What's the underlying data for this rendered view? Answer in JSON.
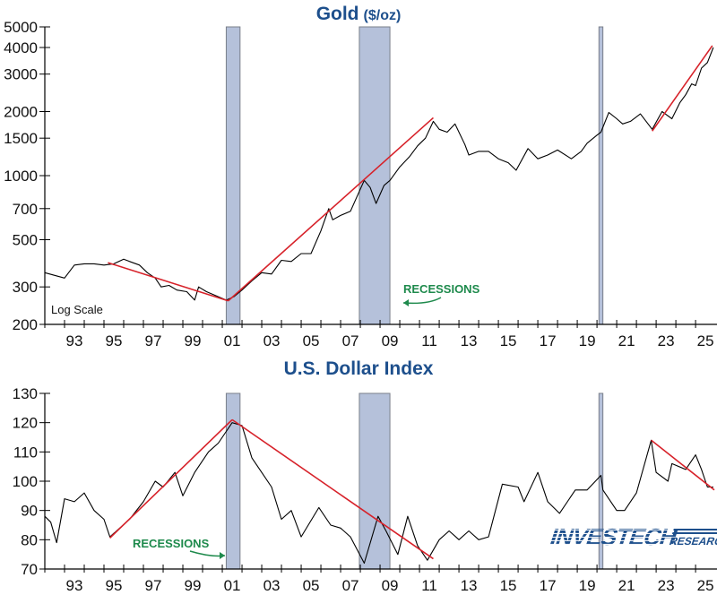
{
  "chart_data": [
    {
      "type": "line",
      "title": "Gold",
      "title_unit": "($/oz)",
      "y_scale": "log",
      "ylim": [
        200,
        5000
      ],
      "xlim": [
        1992,
        2026
      ],
      "y_ticks": [
        200,
        300,
        500,
        700,
        1000,
        1500,
        2000,
        3000,
        4000,
        5000
      ],
      "x_tick_labels": [
        "93",
        "95",
        "97",
        "99",
        "01",
        "03",
        "05",
        "07",
        "09",
        "11",
        "13",
        "15",
        "17",
        "19",
        "21",
        "23",
        "25"
      ],
      "annotation": "Log Scale",
      "recession_label": "RECESSIONS",
      "grid": false,
      "line_color": "#000000",
      "trend_color": "#d7222a",
      "recession_color": "#b5c1da",
      "recessions": [
        [
          2001.2,
          2001.9
        ],
        [
          2007.95,
          2009.5
        ],
        [
          2020.1,
          2020.3
        ]
      ],
      "series": {
        "x": [
          1992.0,
          1992.5,
          1993.0,
          1993.5,
          1994.0,
          1994.5,
          1995.0,
          1995.5,
          1996.0,
          1996.3,
          1996.8,
          1997.2,
          1997.6,
          1997.9,
          1998.3,
          1998.7,
          1999.2,
          1999.6,
          1999.8,
          2000.2,
          2000.6,
          2001.2,
          2001.6,
          2002.0,
          2002.5,
          2003.0,
          2003.5,
          2004.0,
          2004.5,
          2005.0,
          2005.5,
          2006.0,
          2006.4,
          2006.6,
          2007.0,
          2007.5,
          2008.2,
          2008.5,
          2008.8,
          2009.2,
          2009.5,
          2010.0,
          2010.5,
          2010.9,
          2011.3,
          2011.7,
          2012.0,
          2012.4,
          2012.8,
          2013.3,
          2013.5,
          2014.0,
          2014.5,
          2015.0,
          2015.5,
          2015.9,
          2016.5,
          2017.0,
          2017.5,
          2018.0,
          2018.7,
          2019.2,
          2019.5,
          2020.0,
          2020.2,
          2020.6,
          2021.0,
          2021.3,
          2021.7,
          2022.2,
          2022.8,
          2023.3,
          2023.8,
          2024.2,
          2024.5,
          2024.8,
          2025.0,
          2025.3,
          2025.6,
          2025.9
        ],
        "y": [
          350,
          340,
          330,
          380,
          385,
          385,
          380,
          385,
          405,
          395,
          380,
          350,
          330,
          300,
          305,
          290,
          285,
          260,
          300,
          285,
          275,
          260,
          270,
          290,
          320,
          350,
          345,
          400,
          395,
          430,
          430,
          550,
          700,
          620,
          650,
          680,
          950,
          880,
          740,
          900,
          950,
          1100,
          1230,
          1380,
          1500,
          1800,
          1650,
          1600,
          1750,
          1400,
          1250,
          1300,
          1300,
          1200,
          1150,
          1060,
          1340,
          1200,
          1250,
          1320,
          1200,
          1300,
          1420,
          1550,
          1600,
          1980,
          1850,
          1750,
          1800,
          1950,
          1650,
          2000,
          1850,
          2200,
          2400,
          2700,
          2650,
          3200,
          3400,
          4000
        ]
      },
      "trendlines": [
        {
          "x": [
            1995.2,
            2001.3
          ],
          "y": [
            390,
            258
          ]
        },
        {
          "x": [
            2001.3,
            2011.7
          ],
          "y": [
            258,
            1870
          ]
        },
        {
          "x": [
            2022.8,
            2025.85
          ],
          "y": [
            1620,
            4080
          ]
        }
      ]
    },
    {
      "type": "line",
      "title": "U.S. Dollar Index",
      "y_scale": "linear",
      "ylim": [
        70,
        130
      ],
      "xlim": [
        1992,
        2026
      ],
      "y_ticks": [
        70,
        80,
        90,
        100,
        110,
        120,
        130
      ],
      "x_tick_labels": [
        "93",
        "95",
        "97",
        "99",
        "01",
        "03",
        "05",
        "07",
        "09",
        "11",
        "13",
        "15",
        "17",
        "19",
        "21",
        "23",
        "25"
      ],
      "recession_label": "RECESSIONS",
      "grid": false,
      "line_color": "#000000",
      "trend_color": "#d7222a",
      "recession_color": "#b5c1da",
      "recessions": [
        [
          2001.2,
          2001.9
        ],
        [
          2007.95,
          2009.5
        ],
        [
          2020.1,
          2020.3
        ]
      ],
      "series": {
        "x": [
          1992.0,
          1992.3,
          1992.6,
          1993.0,
          1993.5,
          1994.0,
          1994.5,
          1995.0,
          1995.3,
          1995.8,
          1996.3,
          1997.0,
          1997.6,
          1998.0,
          1998.6,
          1999.0,
          1999.6,
          2000.3,
          2000.8,
          2001.2,
          2001.5,
          2002.0,
          2002.5,
          2003.0,
          2003.5,
          2004.0,
          2004.5,
          2005.0,
          2005.9,
          2006.5,
          2007.0,
          2007.5,
          2008.2,
          2008.9,
          2009.3,
          2009.9,
          2010.4,
          2010.9,
          2011.4,
          2012.0,
          2012.5,
          2013.0,
          2013.5,
          2014.0,
          2014.5,
          2015.2,
          2016.0,
          2016.3,
          2017.0,
          2017.5,
          2018.1,
          2018.9,
          2019.5,
          2020.2,
          2020.3,
          2021.0,
          2021.4,
          2022.0,
          2022.75,
          2023.0,
          2023.6,
          2023.8,
          2024.5,
          2025.0,
          2025.3,
          2025.6,
          2025.9
        ],
        "y": [
          88,
          86,
          79,
          94,
          93,
          96,
          90,
          87,
          81,
          84,
          87,
          93,
          100,
          98,
          103,
          95,
          103,
          110,
          113,
          117,
          120,
          119,
          108,
          103,
          98,
          87,
          90,
          81,
          91,
          85,
          84,
          81,
          72,
          88,
          83,
          75,
          88,
          78,
          73,
          80,
          83,
          80,
          83,
          80,
          81,
          99,
          98,
          93,
          103,
          93,
          89,
          97,
          97,
          102,
          97,
          90,
          90,
          96,
          114,
          103,
          100,
          106,
          104,
          109,
          104,
          98,
          98
        ]
      },
      "trendlines": [
        {
          "x": [
            1995.3,
            2001.5
          ],
          "y": [
            80.6,
            121
          ]
        },
        {
          "x": [
            2001.5,
            2011.7
          ],
          "y": [
            121,
            73.5
          ]
        },
        {
          "x": [
            2022.75,
            2025.95
          ],
          "y": [
            114,
            97
          ]
        }
      ]
    }
  ],
  "logo": {
    "name": "INVESTECH",
    "sub": "RESEARCH",
    "color": "#1d4f8c"
  }
}
